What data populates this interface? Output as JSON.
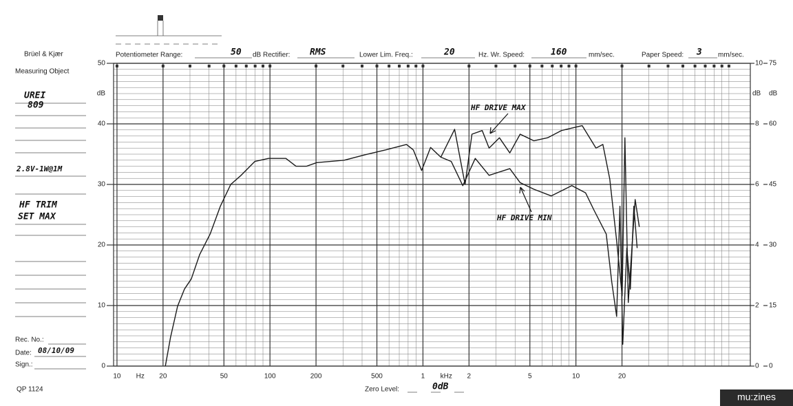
{
  "form": {
    "brand": "Brüel & Kjær",
    "measuring_object": "Measuring Object",
    "object_lines": [
      "UREI",
      "809",
      "2.8V-1W@1M",
      "HF TRIM",
      "SET MAX"
    ],
    "pot_range_label": "Potentiometer Range:",
    "pot_range": "50",
    "rectifier_label": "dB Rectifier:",
    "rectifier": "RMS",
    "lower_lim_label": "Lower Lim. Freq.:",
    "lower_lim": "20",
    "wr_speed_label": "Hz. Wr. Speed:",
    "wr_speed": "160",
    "wr_speed_unit": "mm/sec.",
    "paper_speed_label": "Paper Speed:",
    "paper_speed": "3",
    "paper_speed_unit": "mm/sec.",
    "rec_no_label": "Rec. No.:",
    "date_label": "Date:",
    "date": "08/10/09",
    "sign_label": "Sign.:",
    "form_no": "QP 1124",
    "zero_level_label": "Zero Level:",
    "zero_level": "0dB"
  },
  "watermark": "mu:zines",
  "chart_data": {
    "type": "line",
    "log_x": true,
    "grid": true,
    "y_label": "dB",
    "y2_label": "dB",
    "y3_label": "dB",
    "x_unit": "Hz",
    "x_unit_k": "kHz",
    "xlim": [
      9.5,
      138000
    ],
    "xticks": [
      10,
      20,
      50,
      100,
      200,
      500,
      {
        "value": 1000,
        "label": "1"
      },
      {
        "value": 2000,
        "label": "2"
      },
      {
        "value": 5000,
        "label": "5"
      },
      {
        "value": 10000,
        "label": "10"
      },
      {
        "value": 20000,
        "label": "20"
      }
    ],
    "ylim": [
      0,
      50
    ],
    "yticks": [
      0,
      10,
      20,
      30,
      40,
      50
    ],
    "y2lim": [
      0,
      10
    ],
    "y2ticks": [
      0,
      2,
      4,
      6,
      8,
      10
    ],
    "y3lim": [
      0,
      75
    ],
    "y3ticks": [
      0,
      15,
      30,
      45,
      60,
      75
    ],
    "series": [
      {
        "name": "HF DRIVE MAX",
        "color": "#1a1a1a",
        "x": [
          20.7,
          22.4,
          24.9,
          27.6,
          30.6,
          34.7,
          40.6,
          47.4,
          55.4,
          64.7,
          79.6,
          97.9,
          127,
          148,
          173,
          202,
          306,
          418,
          571,
          780,
          865,
          980,
          1122,
          1309,
          1610,
          1884,
          2090,
          2440,
          2705,
          3160,
          3697,
          4315,
          5310,
          6530,
          8035,
          10990,
          13520,
          15000,
          16640,
          18460,
          20050,
          20900,
          21990,
          24390,
          25940
        ],
        "values": [
          0,
          4.8,
          9.9,
          12.7,
          14.4,
          18.4,
          21.8,
          26.4,
          30,
          31.5,
          33.8,
          34.3,
          34.3,
          33,
          33,
          33.6,
          34,
          34.9,
          35.7,
          36.6,
          35.7,
          32.3,
          36.1,
          34.5,
          39.1,
          30,
          38.3,
          38.9,
          36,
          37.7,
          35.2,
          38.3,
          37.2,
          37.7,
          38.9,
          39.7,
          36,
          36.6,
          30.9,
          20.7,
          11.6,
          37.7,
          10.5,
          27.5,
          23
        ]
      },
      {
        "name": "HF DRIVE MIN",
        "color": "#1a1a1a",
        "x": [
          1309,
          1531,
          1822,
          2198,
          2705,
          3697,
          4315,
          5310,
          6890,
          9400,
          11560,
          13090,
          15780,
          17150,
          18460,
          19400,
          20230,
          21520,
          22680,
          23900,
          25120
        ],
        "values": [
          34.5,
          33.8,
          29.8,
          34.3,
          31.5,
          32.6,
          30.3,
          29.2,
          28.1,
          29.8,
          28.6,
          25.8,
          21.8,
          13.9,
          8.2,
          26.4,
          3.6,
          19.5,
          12.7,
          26.4,
          19.5
        ]
      }
    ]
  }
}
